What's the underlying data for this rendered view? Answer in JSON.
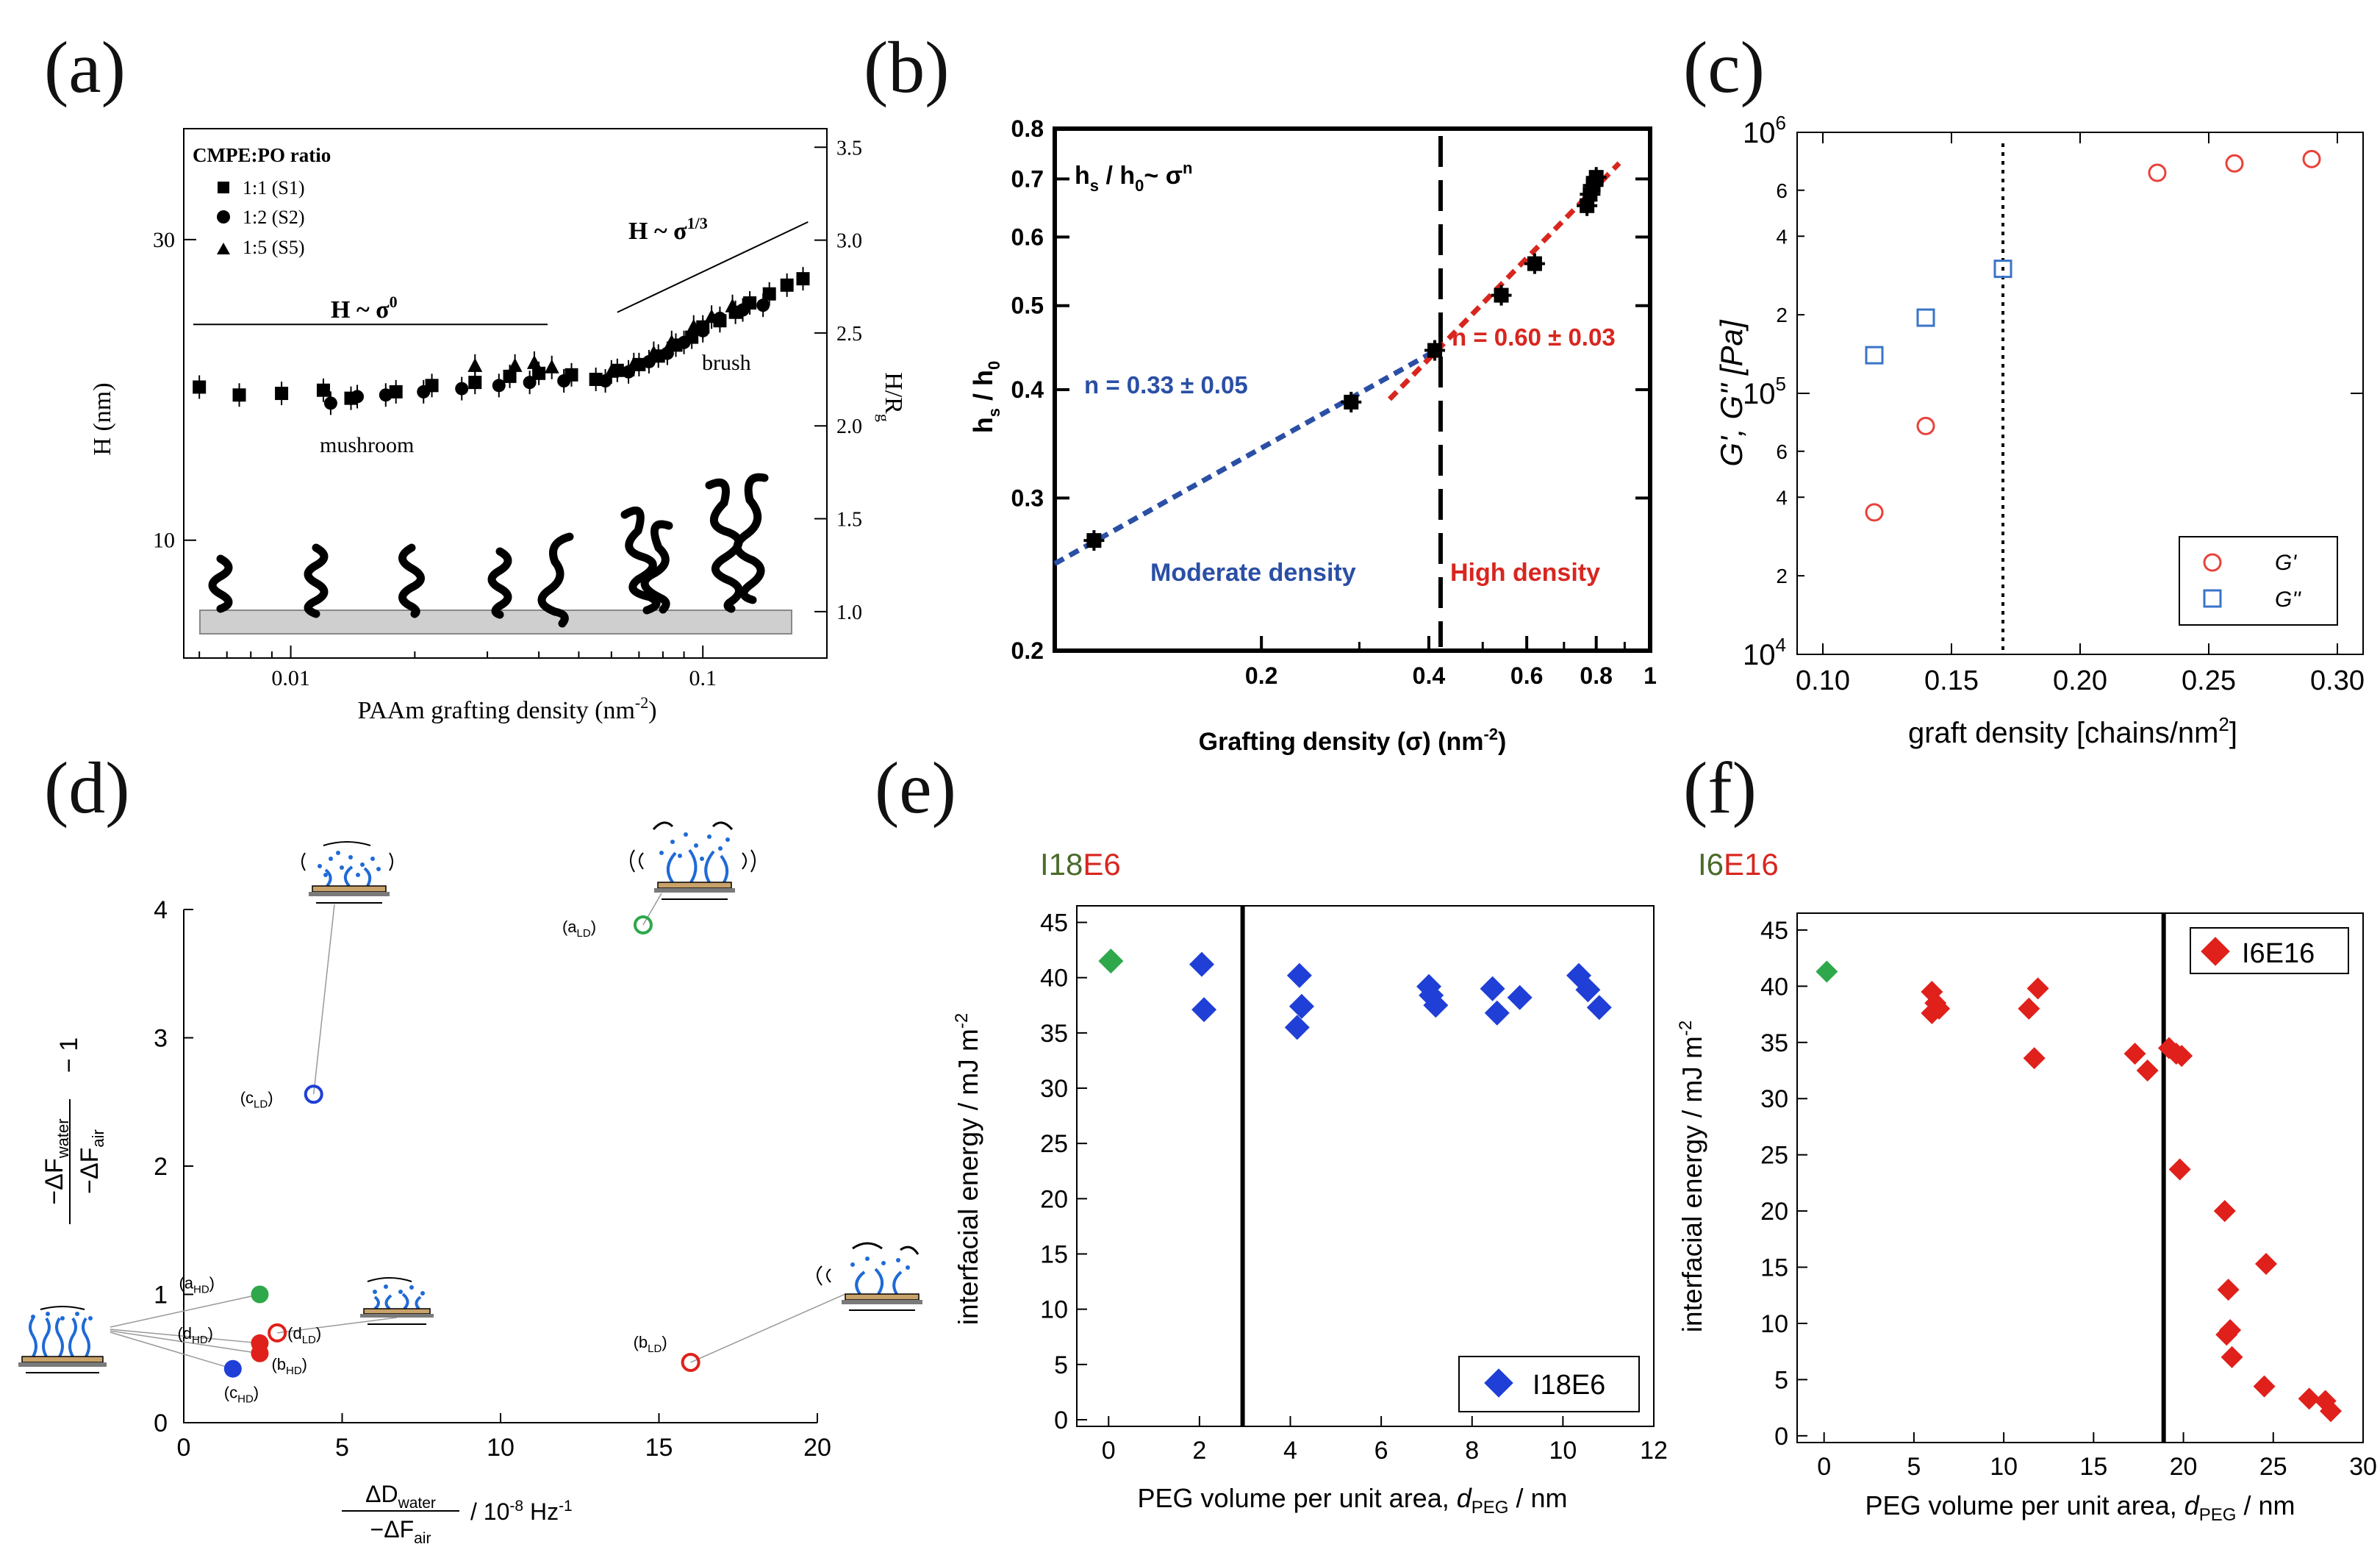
{
  "panels": {
    "a": {
      "letter": "(a)",
      "legend_title": "CMPE:PO ratio",
      "legend": [
        "1:1 (S1)",
        "1:2 (S2)",
        "1:5 (S5)"
      ],
      "ylabel": "H  (nm)",
      "ylabel_right": "H/R",
      "ylabel_right_sub": "g",
      "xlabel": "PAAm grafting density  (nm",
      "xlabel_sup": "-2",
      "xlabel_end": ")",
      "regime_left": "H ~ σ",
      "regime_left_sup": "0",
      "regime_right": "H ~ σ",
      "regime_right_sup": "1/3",
      "label_mushroom": "mushroom",
      "label_brush": "brush",
      "x_ticks": [
        "0.01",
        "0.1"
      ],
      "y_ticks": [
        "10",
        "30"
      ],
      "y2_ticks": [
        "1.0",
        "1.5",
        "2.0",
        "2.5",
        "3.0",
        "3.5"
      ]
    },
    "b": {
      "letter": "(b)",
      "formula": "h",
      "formula_sub1": "s",
      "formula_mid": " / h",
      "formula_sub2": "0",
      "formula_end": "~ σ",
      "formula_sup": "n",
      "ylabel": "h",
      "ylabel_sub1": "s",
      "ylabel_mid": " / h",
      "ylabel_sub2": "0",
      "xlabel": "Grafting density (σ) (nm",
      "xlabel_sup": "-2",
      "xlabel_end": ")",
      "n_moderate": "n = 0.33 ± 0.05",
      "n_high": "n = 0.60 ± 0.03",
      "label_moderate": "Moderate density",
      "label_high": "High density",
      "x_ticks": [
        "0.2",
        "0.4",
        "0.6",
        "0.8",
        "1"
      ],
      "y_ticks": [
        "0.2",
        "0.3",
        "0.4",
        "0.5",
        "0.6",
        "0.7",
        "0.8"
      ]
    },
    "c": {
      "letter": "(c)",
      "ylabel": "G', G'' [Pa]",
      "xlabel": "graft density [chains/nm",
      "xlabel_sup": "2",
      "xlabel_end": "]",
      "legend": [
        "G'",
        "G''"
      ],
      "x_ticks": [
        "0.10",
        "0.15",
        "0.20",
        "0.25",
        "0.30"
      ],
      "y_major": [
        {
          "base": "10",
          "exp": "4"
        },
        {
          "base": "10",
          "exp": "5"
        },
        {
          "base": "10",
          "exp": "6"
        }
      ],
      "y_minor": [
        "2",
        "4",
        "6",
        "2",
        "4",
        "6"
      ]
    },
    "d": {
      "letter": "(d)",
      "ylabel_num": "−ΔF",
      "ylabel_num_sub": "water",
      "ylabel_den": "−ΔF",
      "ylabel_den_sub": "air",
      "ylabel_tail": "− 1",
      "xlabel_num": "ΔD",
      "xlabel_num_sub": "water",
      "xlabel_den": "−ΔF",
      "xlabel_den_sub": "air",
      "xlabel_tail": "/ 10",
      "xlabel_exp": "-8",
      "xlabel_unit": " Hz",
      "xlabel_unit_exp": "-1",
      "x_ticks": [
        "0",
        "5",
        "10",
        "15",
        "20"
      ],
      "y_ticks": [
        "0",
        "1",
        "2",
        "3",
        "4"
      ],
      "point_labels": {
        "aLD": {
          "main": "(a",
          "sub": "LD",
          "end": ")"
        },
        "cLD": {
          "main": "(c",
          "sub": "LD",
          "end": ")"
        },
        "aHD": {
          "main": "(a",
          "sub": "HD",
          "end": ")"
        },
        "dLD": {
          "main": "(d",
          "sub": "LD",
          "end": ")"
        },
        "dHD": {
          "main": "(d",
          "sub": "HD",
          "end": ")"
        },
        "bHD": {
          "main": "(b",
          "sub": "HD",
          "end": ")"
        },
        "cHD": {
          "main": "(c",
          "sub": "HD",
          "end": ")"
        },
        "bLD": {
          "main": "(b",
          "sub": "LD",
          "end": ")"
        }
      }
    },
    "e": {
      "letter": "(e)",
      "title_part1": "I18",
      "title_part2": "E6",
      "ylabel": "interfacial energy / mJ m",
      "ylabel_sup": "-2",
      "xlabel": "PEG volume per unit area, ",
      "xlabel_var": "d",
      "xlabel_var_sub": "PEG",
      "xlabel_end": " / nm",
      "legend": "I18E6",
      "x_ticks": [
        "0",
        "2",
        "4",
        "6",
        "8",
        "10",
        "12"
      ],
      "y_ticks": [
        "0",
        "5",
        "10",
        "15",
        "20",
        "25",
        "30",
        "35",
        "40",
        "45"
      ]
    },
    "f": {
      "letter": "(f)",
      "title_part1": "I6",
      "title_part2": "E16",
      "ylabel": "interfacial energy / mJ m",
      "ylabel_sup": "-2",
      "xlabel": "PEG volume per unit area, ",
      "xlabel_var": "d",
      "xlabel_var_sub": "PEG",
      "xlabel_end": " / nm",
      "legend": "I6E16",
      "x_ticks": [
        "0",
        "5",
        "10",
        "15",
        "20",
        "25",
        "30"
      ],
      "y_ticks": [
        "0",
        "5",
        "10",
        "15",
        "20",
        "25",
        "30",
        "35",
        "40",
        "45"
      ]
    }
  },
  "colors": {
    "blue": "#1f3fd6",
    "red": "#e0201b",
    "green": "#2ea84a",
    "dark_blue_text": "#2a4fa5",
    "red_text": "#d8261f",
    "open_red": "#e8423a",
    "open_blue": "#3a74c9",
    "title_green": "#4a6a2a",
    "gray_substrate": "#cfcfcf"
  },
  "chart_data": [
    {
      "panel": "a",
      "type": "scatter",
      "xscale": "log",
      "xlim": [
        0.0055,
        0.2
      ],
      "ylim": [
        6.5,
        45
      ],
      "series": [
        {
          "name": "1:1 (S1)",
          "marker": "square",
          "x": [
            0.006,
            0.0075,
            0.0095,
            0.012,
            0.014,
            0.018,
            0.022,
            0.028,
            0.034,
            0.04,
            0.048,
            0.055,
            0.062,
            0.07,
            0.078,
            0.086,
            0.094,
            0.1,
            0.11,
            0.12,
            0.13,
            0.145,
            0.16,
            0.175
          ],
          "y": [
            17.5,
            17.0,
            17.1,
            17.3,
            16.8,
            17.2,
            17.6,
            17.8,
            18.2,
            18.4,
            18.3,
            18.0,
            18.6,
            19.0,
            19.6,
            20.4,
            21.0,
            21.8,
            22.3,
            23.0,
            23.8,
            24.6,
            25.4,
            26.0
          ]
        },
        {
          "name": "1:2 (S2)",
          "marker": "circle",
          "x": [
            0.0125,
            0.0145,
            0.017,
            0.021,
            0.026,
            0.032,
            0.038,
            0.046,
            0.058,
            0.066,
            0.074,
            0.082,
            0.09,
            0.1,
            0.11,
            0.125,
            0.14
          ],
          "y": [
            16.5,
            16.9,
            17.0,
            17.2,
            17.4,
            17.6,
            17.8,
            17.9,
            17.9,
            18.5,
            19.2,
            19.8,
            20.6,
            21.5,
            22.5,
            23.2,
            23.6
          ]
        },
        {
          "name": "1:5 (S5)",
          "marker": "triangle",
          "x": [
            0.028,
            0.035,
            0.039,
            0.043,
            0.06,
            0.068,
            0.076,
            0.084,
            0.095,
            0.105,
            0.118
          ],
          "y": [
            18.9,
            18.9,
            19.1,
            18.8,
            18.5,
            19.0,
            19.8,
            20.6,
            21.8,
            22.6,
            23.5
          ]
        }
      ],
      "fit_lines": [
        {
          "label": "H ~ σ^0",
          "x": [
            0.0058,
            0.042
          ],
          "y": [
            22.0,
            22.0
          ]
        },
        {
          "label": "H ~ σ^1/3",
          "x": [
            0.062,
            0.18
          ],
          "y": [
            23.0,
            32.0
          ]
        }
      ]
    },
    {
      "panel": "b",
      "type": "scatter",
      "xscale": "log",
      "yscale": "log",
      "xlim": [
        0.085,
        1.0
      ],
      "ylim": [
        0.2,
        0.8
      ],
      "points": {
        "x": [
          0.1,
          0.29,
          0.41,
          0.54,
          0.62,
          0.77,
          0.78,
          0.79,
          0.8
        ],
        "y": [
          0.268,
          0.387,
          0.444,
          0.514,
          0.559,
          0.652,
          0.672,
          0.688,
          0.703
        ]
      },
      "fits": [
        {
          "name": "moderate",
          "n": 0.33,
          "n_err": 0.05,
          "x": [
            0.085,
            0.42
          ],
          "y": [
            0.252,
            0.447
          ]
        },
        {
          "name": "high",
          "n": 0.6,
          "n_err": 0.03,
          "x": [
            0.34,
            0.88
          ],
          "y": [
            0.39,
            0.73
          ]
        }
      ],
      "boundary_x": 0.42
    },
    {
      "panel": "c",
      "type": "scatter",
      "yscale": "log",
      "xlim": [
        0.09,
        0.31
      ],
      "ylim": [
        10000,
        1000000
      ],
      "series": [
        {
          "name": "G'",
          "marker": "open-circle",
          "x": [
            0.12,
            0.14,
            0.23,
            0.26,
            0.29
          ],
          "y": [
            35000,
            75000,
            700000,
            760000,
            790000
          ]
        },
        {
          "name": "G''",
          "marker": "open-square",
          "x": [
            0.12,
            0.14,
            0.17
          ],
          "y": [
            140000,
            195000,
            300000
          ]
        }
      ],
      "boundary_x": 0.17
    },
    {
      "panel": "d",
      "type": "scatter",
      "xlim": [
        0,
        20
      ],
      "ylim": [
        0,
        4
      ],
      "points": [
        {
          "label": "aLD",
          "x": 14.5,
          "y": 3.88,
          "filled": false,
          "color": "green"
        },
        {
          "label": "cLD",
          "x": 4.1,
          "y": 2.56,
          "filled": false,
          "color": "blue"
        },
        {
          "label": "aHD",
          "x": 2.4,
          "y": 1.0,
          "filled": true,
          "color": "green"
        },
        {
          "label": "dLD",
          "x": 2.95,
          "y": 0.7,
          "filled": false,
          "color": "red"
        },
        {
          "label": "dHD",
          "x": 2.4,
          "y": 0.62,
          "filled": true,
          "color": "red"
        },
        {
          "label": "bHD",
          "x": 2.4,
          "y": 0.54,
          "filled": true,
          "color": "red"
        },
        {
          "label": "cHD",
          "x": 1.55,
          "y": 0.42,
          "filled": true,
          "color": "blue"
        },
        {
          "label": "bLD",
          "x": 16.0,
          "y": 0.47,
          "filled": false,
          "color": "red"
        }
      ]
    },
    {
      "panel": "e",
      "type": "scatter",
      "xlim": [
        -0.7,
        12
      ],
      "ylim": [
        -0.6,
        46.5
      ],
      "reference": {
        "x": [
          0.05
        ],
        "y": [
          41.5
        ],
        "color": "green"
      },
      "series": [
        {
          "name": "I18E6",
          "x": [
            2.05,
            2.1,
            4.2,
            4.25,
            4.15,
            7.05,
            7.1,
            7.2,
            8.45,
            8.55,
            9.05,
            10.35,
            10.55,
            10.8
          ],
          "y": [
            41.2,
            37.1,
            40.2,
            37.4,
            35.5,
            39.2,
            38.4,
            37.5,
            39.0,
            36.8,
            38.2,
            40.2,
            38.9,
            37.3
          ]
        }
      ],
      "boundary_x": 2.95
    },
    {
      "panel": "f",
      "type": "scatter",
      "xlim": [
        -1.5,
        30
      ],
      "ylim": [
        -0.6,
        46.5
      ],
      "reference": {
        "x": [
          0.15
        ],
        "y": [
          41.3
        ],
        "color": "green"
      },
      "series": [
        {
          "name": "I6E16",
          "x": [
            6.0,
            6.2,
            6.0,
            6.4,
            11.4,
            11.9,
            11.7,
            17.3,
            18.0,
            19.2,
            19.6,
            19.9,
            19.8,
            22.3,
            22.5,
            22.6,
            22.4,
            22.7,
            24.6,
            24.5,
            27.0,
            27.9,
            28.2
          ],
          "y": [
            39.5,
            38.5,
            37.6,
            38.0,
            38.0,
            39.8,
            33.6,
            34.0,
            32.5,
            34.5,
            34.0,
            33.8,
            23.7,
            20.0,
            13.0,
            9.4,
            9.0,
            7.0,
            15.3,
            4.4,
            3.3,
            3.1,
            2.2
          ]
        }
      ],
      "boundary_x": 18.9
    }
  ]
}
